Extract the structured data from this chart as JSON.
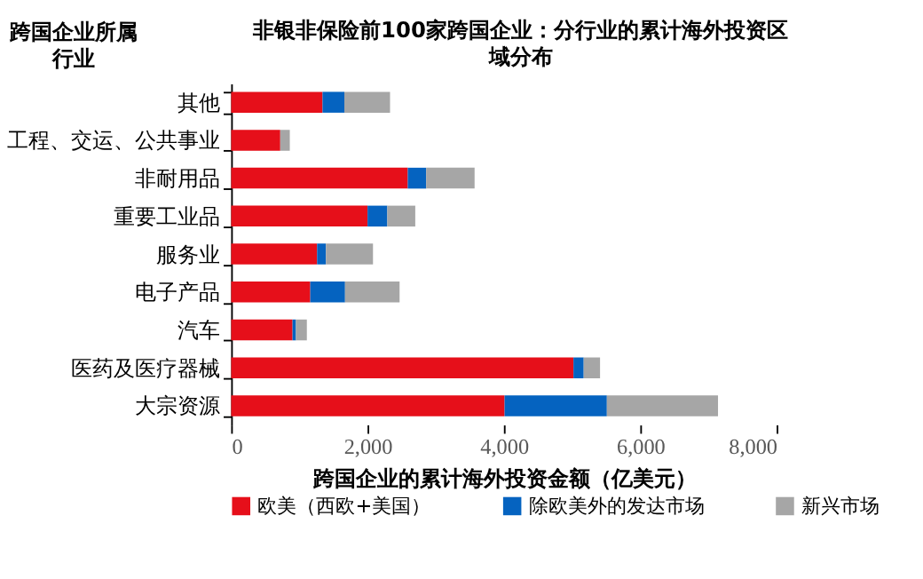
{
  "chart_data": {
    "type": "bar",
    "orientation": "horizontal",
    "stacked": true,
    "title": "非银非保险前100家跨国企业：分行业的累计海外投资区域分布",
    "ylabel": "跨国企业所属行业",
    "xlabel": "跨国企业的累计海外投资金额（亿美元）",
    "categories": [
      "其他",
      "工程、交运、公共事业",
      "非耐用品",
      "重要工业品",
      "服务业",
      "电子产品",
      "汽车",
      "医药及医疗器械",
      "大宗资源"
    ],
    "series": [
      {
        "name": "欧美（西欧+美国）",
        "color": "#e60f1a",
        "values": [
          1340,
          720,
          2590,
          2000,
          1260,
          1160,
          900,
          5020,
          4010
        ]
      },
      {
        "name": "除欧美外的发达市场",
        "color": "#0563c0",
        "values": [
          320,
          0,
          270,
          290,
          130,
          510,
          50,
          150,
          1500
        ]
      },
      {
        "name": "新兴市场",
        "color": "#a6a6a6",
        "values": [
          670,
          140,
          710,
          410,
          690,
          800,
          160,
          240,
          1630
        ]
      }
    ],
    "xlim": [
      0,
      8000
    ],
    "xticks": [
      0,
      {
        "value": 2000,
        "label": "2,000"
      },
      {
        "value": 4000,
        "label": "4,000"
      },
      {
        "value": 6000,
        "label": "6,000"
      },
      {
        "value": 8000,
        "label": "8,000"
      }
    ],
    "grid": false,
    "legend": "bottom"
  }
}
